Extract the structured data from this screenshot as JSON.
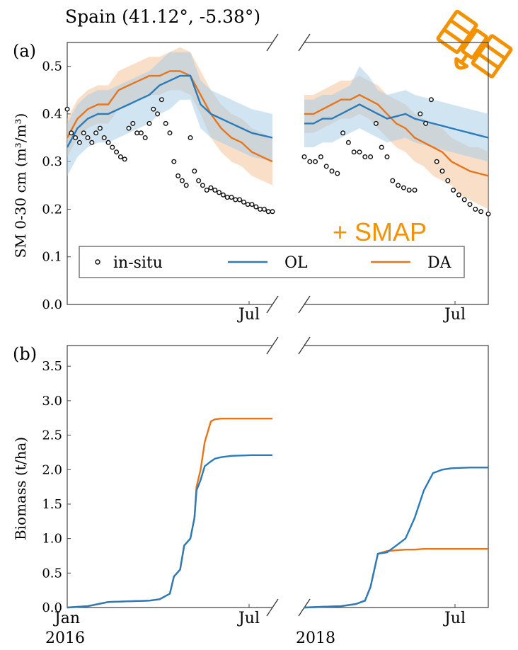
{
  "title": "Spain (41.12°, -5.38°)",
  "smap_label": "+ SMAP",
  "colors": {
    "ol": "#2b7bba",
    "da": "#e8751a",
    "ol_band": "#a9cde6",
    "da_band": "#f4c29a",
    "smap": "#f39200",
    "insitu": "#111111"
  },
  "icons": {
    "satellite": "satellite-icon"
  },
  "chart_data": [
    {
      "type": "line",
      "panel_label": "(a)",
      "ylabel": "SM 0-30 cm (m³/m³)",
      "ylim": [
        0,
        0.55
      ],
      "yticks": [
        "0.0",
        "0.1",
        "0.2",
        "0.3",
        "0.4",
        "0.5"
      ],
      "x_tick_label": "Jul",
      "legend": {
        "placement": "lower-center",
        "entries": [
          "in-situ",
          "OL",
          "DA"
        ]
      },
      "segments": [
        {
          "year": "2016",
          "x": [
            0,
            0.05,
            0.1,
            0.15,
            0.2,
            0.25,
            0.3,
            0.35,
            0.4,
            0.45,
            0.5,
            0.55,
            0.6,
            0.65,
            0.7,
            0.75,
            0.8,
            0.85,
            0.9,
            0.95,
            1.0
          ],
          "series": [
            {
              "name": "OL",
              "values": [
                0.33,
                0.37,
                0.39,
                0.4,
                0.4,
                0.41,
                0.42,
                0.43,
                0.44,
                0.46,
                0.47,
                0.48,
                0.48,
                0.42,
                0.4,
                0.39,
                0.38,
                0.37,
                0.36,
                0.355,
                0.35
              ],
              "lower": [
                0.27,
                0.31,
                0.33,
                0.34,
                0.34,
                0.35,
                0.36,
                0.37,
                0.38,
                0.4,
                0.41,
                0.43,
                0.43,
                0.37,
                0.35,
                0.34,
                0.33,
                0.32,
                0.31,
                0.305,
                0.3
              ],
              "upper": [
                0.38,
                0.42,
                0.44,
                0.45,
                0.45,
                0.46,
                0.47,
                0.48,
                0.49,
                0.51,
                0.53,
                0.53,
                0.53,
                0.47,
                0.45,
                0.44,
                0.43,
                0.42,
                0.41,
                0.405,
                0.4
              ]
            },
            {
              "name": "DA",
              "values": [
                0.35,
                0.39,
                0.41,
                0.42,
                0.42,
                0.45,
                0.46,
                0.47,
                0.48,
                0.48,
                0.49,
                0.49,
                0.48,
                0.44,
                0.4,
                0.37,
                0.35,
                0.34,
                0.32,
                0.31,
                0.3
              ],
              "lower": [
                0.31,
                0.35,
                0.37,
                0.38,
                0.38,
                0.41,
                0.42,
                0.43,
                0.44,
                0.44,
                0.45,
                0.45,
                0.44,
                0.4,
                0.35,
                0.32,
                0.3,
                0.29,
                0.27,
                0.26,
                0.25
              ],
              "upper": [
                0.39,
                0.43,
                0.45,
                0.46,
                0.46,
                0.49,
                0.5,
                0.51,
                0.52,
                0.52,
                0.53,
                0.54,
                0.53,
                0.49,
                0.45,
                0.42,
                0.4,
                0.39,
                0.37,
                0.36,
                0.35
              ]
            },
            {
              "name": "in-situ",
              "x": [
                0.0,
                0.02,
                0.04,
                0.06,
                0.08,
                0.1,
                0.12,
                0.14,
                0.16,
                0.18,
                0.2,
                0.22,
                0.24,
                0.26,
                0.28,
                0.3,
                0.32,
                0.34,
                0.36,
                0.38,
                0.4,
                0.42,
                0.44,
                0.46,
                0.48,
                0.5,
                0.52,
                0.54,
                0.56,
                0.58,
                0.6,
                0.62,
                0.64,
                0.66,
                0.68,
                0.7,
                0.72,
                0.74,
                0.76,
                0.78,
                0.8,
                0.82,
                0.84,
                0.86,
                0.88,
                0.9,
                0.92,
                0.94,
                0.96,
                0.98,
                1.0
              ],
              "values": [
                0.41,
                0.36,
                0.35,
                0.34,
                0.36,
                0.35,
                0.34,
                0.36,
                0.37,
                0.35,
                0.34,
                0.33,
                0.32,
                0.31,
                0.305,
                0.37,
                0.38,
                0.36,
                0.36,
                0.35,
                0.38,
                0.41,
                0.4,
                0.43,
                0.38,
                0.36,
                0.3,
                0.27,
                0.26,
                0.25,
                0.35,
                0.28,
                0.26,
                0.25,
                0.24,
                0.245,
                0.24,
                0.235,
                0.23,
                0.225,
                0.225,
                0.22,
                0.22,
                0.215,
                0.21,
                0.21,
                0.205,
                0.2,
                0.2,
                0.195,
                0.195
              ]
            }
          ]
        },
        {
          "year": "2018",
          "x": [
            0,
            0.05,
            0.1,
            0.15,
            0.2,
            0.25,
            0.3,
            0.35,
            0.4,
            0.45,
            0.5,
            0.55,
            0.6,
            0.65,
            0.7,
            0.75,
            0.8,
            0.85,
            0.9,
            0.95,
            1.0
          ],
          "series": [
            {
              "name": "OL",
              "values": [
                0.38,
                0.38,
                0.39,
                0.39,
                0.4,
                0.41,
                0.42,
                0.41,
                0.4,
                0.39,
                0.395,
                0.4,
                0.39,
                0.385,
                0.38,
                0.375,
                0.37,
                0.365,
                0.36,
                0.355,
                0.35
              ],
              "lower": [
                0.33,
                0.33,
                0.34,
                0.34,
                0.35,
                0.36,
                0.37,
                0.36,
                0.35,
                0.34,
                0.345,
                0.35,
                0.34,
                0.335,
                0.33,
                0.325,
                0.32,
                0.315,
                0.31,
                0.305,
                0.3
              ],
              "upper": [
                0.43,
                0.43,
                0.44,
                0.44,
                0.45,
                0.46,
                0.5,
                0.48,
                0.45,
                0.44,
                0.445,
                0.45,
                0.44,
                0.435,
                0.43,
                0.425,
                0.42,
                0.415,
                0.41,
                0.405,
                0.4
              ]
            },
            {
              "name": "DA",
              "values": [
                0.4,
                0.4,
                0.41,
                0.42,
                0.43,
                0.43,
                0.44,
                0.43,
                0.42,
                0.4,
                0.38,
                0.37,
                0.35,
                0.34,
                0.33,
                0.32,
                0.3,
                0.29,
                0.28,
                0.275,
                0.27
              ],
              "lower": [
                0.36,
                0.36,
                0.37,
                0.38,
                0.39,
                0.39,
                0.4,
                0.39,
                0.37,
                0.35,
                0.33,
                0.32,
                0.3,
                0.29,
                0.27,
                0.26,
                0.25,
                0.23,
                0.22,
                0.21,
                0.2
              ],
              "upper": [
                0.44,
                0.44,
                0.45,
                0.46,
                0.47,
                0.47,
                0.48,
                0.47,
                0.46,
                0.44,
                0.43,
                0.42,
                0.4,
                0.39,
                0.38,
                0.37,
                0.35,
                0.34,
                0.33,
                0.33,
                0.32
              ]
            },
            {
              "name": "in-situ",
              "x": [
                0.0,
                0.03,
                0.06,
                0.09,
                0.12,
                0.15,
                0.18,
                0.21,
                0.24,
                0.27,
                0.3,
                0.33,
                0.36,
                0.39,
                0.42,
                0.45,
                0.48,
                0.51,
                0.54,
                0.57,
                0.6,
                0.63,
                0.66,
                0.69,
                0.72,
                0.75,
                0.78,
                0.81,
                0.84,
                0.87,
                0.9,
                0.93,
                0.96,
                1.0
              ],
              "values": [
                0.31,
                0.3,
                0.3,
                0.31,
                0.29,
                0.28,
                0.275,
                0.36,
                0.34,
                0.32,
                0.32,
                0.31,
                0.31,
                0.38,
                0.33,
                0.31,
                0.26,
                0.25,
                0.245,
                0.24,
                0.24,
                0.4,
                0.38,
                0.43,
                0.3,
                0.28,
                0.26,
                0.24,
                0.23,
                0.22,
                0.21,
                0.2,
                0.195,
                0.19
              ]
            }
          ]
        }
      ]
    },
    {
      "type": "line",
      "panel_label": "(b)",
      "ylabel": "Biomass (t/ha)",
      "ylim": [
        0,
        3.8
      ],
      "yticks": [
        "0.0",
        "0.5",
        "1.0",
        "1.5",
        "2.0",
        "2.5",
        "3.0",
        "3.5"
      ],
      "x_tick_labels": [
        "Jan",
        "Jul",
        "Jul"
      ],
      "year_labels": [
        "2016",
        "2018"
      ],
      "segments": [
        {
          "year": "2016",
          "x": [
            0,
            0.1,
            0.2,
            0.3,
            0.4,
            0.45,
            0.5,
            0.52,
            0.55,
            0.57,
            0.6,
            0.62,
            0.63,
            0.65,
            0.67,
            0.7,
            0.72,
            0.75,
            0.8,
            0.9,
            1.0
          ],
          "series": [
            {
              "name": "OL",
              "values": [
                0.0,
                0.02,
                0.08,
                0.09,
                0.1,
                0.12,
                0.2,
                0.45,
                0.55,
                0.9,
                1.0,
                1.3,
                1.7,
                1.85,
                2.05,
                2.12,
                2.16,
                2.18,
                2.2,
                2.21,
                2.21
              ]
            },
            {
              "name": "DA",
              "values": [
                0.0,
                0.02,
                0.08,
                0.09,
                0.1,
                0.12,
                0.2,
                0.45,
                0.55,
                0.9,
                1.0,
                1.3,
                1.75,
                2.0,
                2.4,
                2.7,
                2.73,
                2.74,
                2.74,
                2.74,
                2.74
              ]
            }
          ]
        },
        {
          "year": "2018",
          "x": [
            0,
            0.1,
            0.2,
            0.28,
            0.33,
            0.36,
            0.4,
            0.45,
            0.5,
            0.55,
            0.6,
            0.65,
            0.7,
            0.75,
            0.8,
            0.9,
            1.0
          ],
          "series": [
            {
              "name": "OL",
              "values": [
                0.0,
                0.01,
                0.02,
                0.05,
                0.1,
                0.3,
                0.78,
                0.8,
                0.9,
                1.0,
                1.3,
                1.7,
                1.95,
                2.0,
                2.02,
                2.03,
                2.03
              ]
            },
            {
              "name": "DA",
              "values": [
                0.0,
                0.01,
                0.02,
                0.05,
                0.1,
                0.3,
                0.78,
                0.82,
                0.83,
                0.84,
                0.84,
                0.85,
                0.85,
                0.85,
                0.85,
                0.85,
                0.85
              ]
            }
          ]
        }
      ]
    }
  ]
}
